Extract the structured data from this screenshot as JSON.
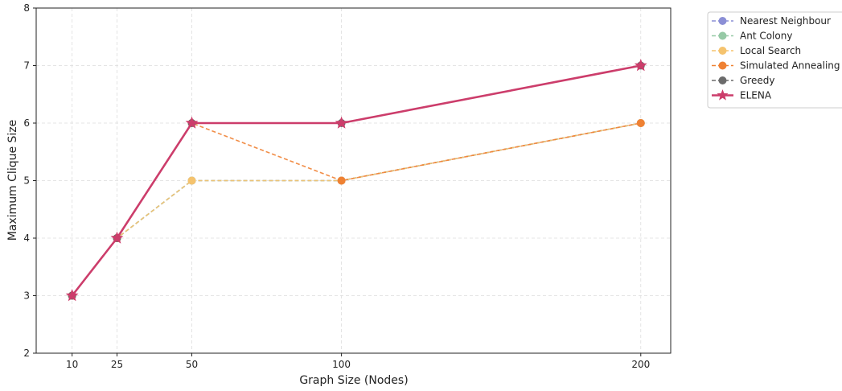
{
  "chart_data": {
    "type": "line",
    "xlabel": "Graph Size (Nodes)",
    "ylabel": "Maximum Clique Size",
    "x": [
      10,
      25,
      50,
      100,
      200
    ],
    "xticks": [
      10,
      25,
      50,
      100,
      200
    ],
    "yticks": [
      2,
      3,
      4,
      5,
      6,
      7,
      8
    ],
    "xlim": [
      -2,
      210
    ],
    "ylim": [
      2,
      8
    ],
    "grid": true,
    "legend_position": "outside top-right",
    "series": [
      {
        "name": "Nearest Neighbour",
        "values": [
          3,
          4,
          5,
          5,
          6
        ],
        "color": "#8b8fd6",
        "marker": "circle",
        "line_style": "dashed"
      },
      {
        "name": "Ant Colony",
        "values": [
          3,
          4,
          5,
          5,
          6
        ],
        "color": "#96c9a6",
        "marker": "circle",
        "line_style": "dashed"
      },
      {
        "name": "Local Search",
        "values": [
          3,
          4,
          5,
          5,
          6
        ],
        "color": "#f5c36e",
        "marker": "circle",
        "line_style": "dashed"
      },
      {
        "name": "Simulated Annealing",
        "values": [
          3,
          4,
          6,
          5,
          6
        ],
        "color": "#ef8133",
        "marker": "circle",
        "line_style": "dashed"
      },
      {
        "name": "Greedy",
        "values": [
          3,
          4,
          6,
          6,
          7
        ],
        "color": "#6b6b6b",
        "marker": "circle",
        "line_style": "dashed"
      },
      {
        "name": "ELENA",
        "values": [
          3,
          4,
          6,
          6,
          7
        ],
        "color": "#cc3d6b",
        "marker": "star",
        "line_style": "solid"
      }
    ]
  }
}
